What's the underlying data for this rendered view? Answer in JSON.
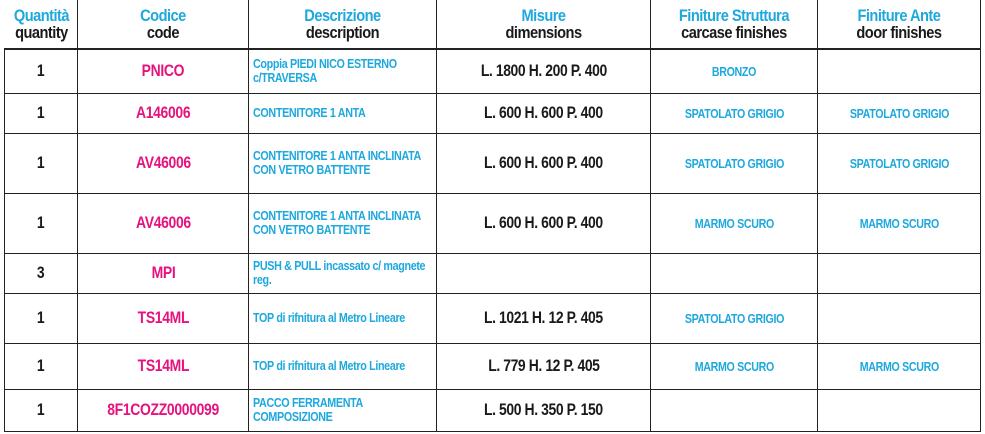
{
  "headers": [
    {
      "it": "Quantità",
      "en": "quantity"
    },
    {
      "it": "Codice",
      "en": "code"
    },
    {
      "it": "Descrizione",
      "en": "description"
    },
    {
      "it": "Misure",
      "en": "dimensions"
    },
    {
      "it": "Finiture Struttura",
      "en": "carcase finishes"
    },
    {
      "it": "Finiture Ante",
      "en": "door finishes"
    }
  ],
  "rows": [
    {
      "qty": "1",
      "code": "PNICO",
      "desc": "Coppia PIEDI NICO ESTERNO c/TRAVERSA",
      "dim": "L. 1800 H. 200 P. 400",
      "carcase": "BRONZO",
      "door": ""
    },
    {
      "qty": "1",
      "code": "A146006",
      "desc": "CONTENITORE 1 ANTA",
      "dim": "L. 600 H. 600 P. 400",
      "carcase": "SPATOLATO GRIGIO",
      "door": "SPATOLATO GRIGIO"
    },
    {
      "qty": "1",
      "code": "AV46006",
      "desc": "CONTENITORE 1 ANTA INCLINATA CON VETRO BATTENTE",
      "dim": "L. 600 H. 600 P. 400",
      "carcase": "SPATOLATO GRIGIO",
      "door": "SPATOLATO GRIGIO"
    },
    {
      "qty": "1",
      "code": "AV46006",
      "desc": "CONTENITORE 1 ANTA INCLINATA CON VETRO BATTENTE",
      "dim": "L. 600 H. 600 P. 400",
      "carcase": "MARMO SCURO",
      "door": "MARMO SCURO"
    },
    {
      "qty": "3",
      "code": "MPI",
      "desc": "PUSH & PULL incassato c/ magnete reg.",
      "dim": "",
      "carcase": "",
      "door": ""
    },
    {
      "qty": "1",
      "code": "TS14ML",
      "desc": "TOP di rifnitura al Metro Lineare",
      "dim": "L. 1021 H. 12 P. 405",
      "carcase": "SPATOLATO GRIGIO",
      "door": ""
    },
    {
      "qty": "1",
      "code": "TS14ML",
      "desc": "TOP di rifnitura al Metro Lineare",
      "dim": "L. 779 H. 12 P. 405",
      "carcase": "MARMO SCURO",
      "door": "MARMO SCURO"
    },
    {
      "qty": "1",
      "code": "8F1COZZ0000099",
      "desc": "PACCO FERRAMENTA COMPOSIZIONE",
      "dim": "L. 500 H. 350 P. 150",
      "carcase": "",
      "door": ""
    }
  ],
  "colors": {
    "cyan": "#1da8de",
    "magenta": "#e6127e",
    "text": "#1a1a1a",
    "border": "#222222"
  }
}
